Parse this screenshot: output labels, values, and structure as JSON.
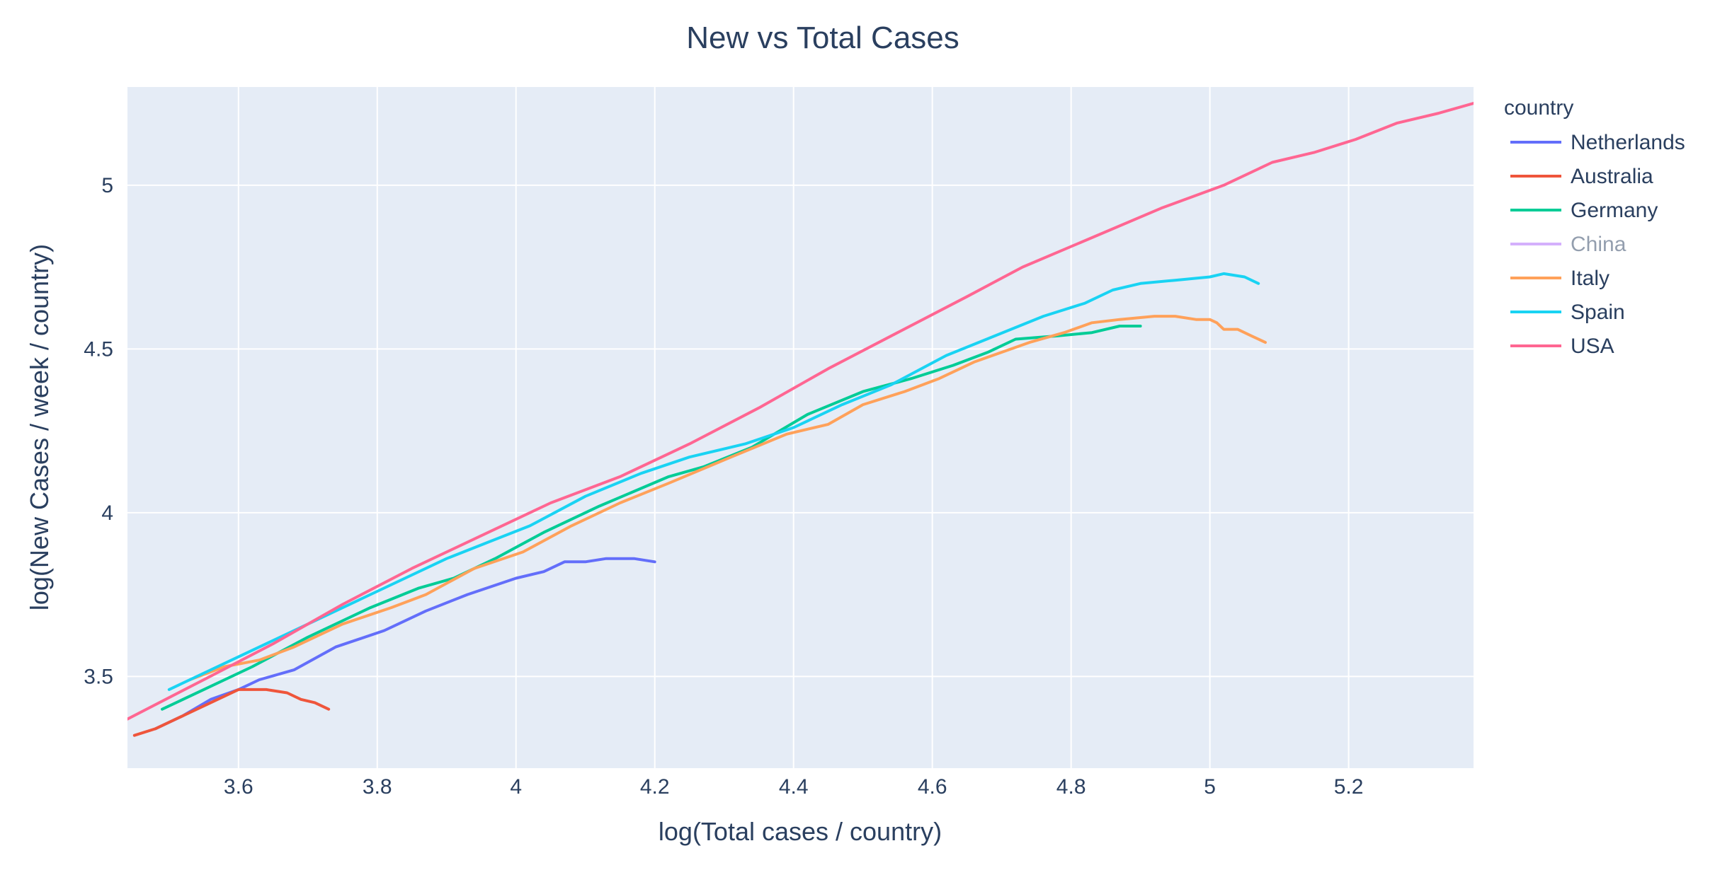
{
  "chart_data": {
    "type": "line",
    "title": "New vs Total Cases",
    "xlabel": "log(Total cases / country)",
    "ylabel": "log(New Cases / week / country)",
    "xlim": [
      3.44,
      5.38
    ],
    "ylim": [
      3.22,
      5.3
    ],
    "x_ticks": [
      3.6,
      3.8,
      4,
      4.2,
      4.4,
      4.6,
      4.8,
      5,
      5.2
    ],
    "x_tick_labels": [
      "3.6",
      "3.8",
      "4",
      "4.2",
      "4.4",
      "4.6",
      "4.8",
      "5",
      "5.2"
    ],
    "y_ticks": [
      3.5,
      4,
      4.5,
      5
    ],
    "y_tick_labels": [
      "3.5",
      "4",
      "4.5",
      "5"
    ],
    "grid": true,
    "legend_title": "country",
    "legend_position": "right",
    "series": [
      {
        "name": "Netherlands",
        "color": "#636efa",
        "hidden": false,
        "x": [
          3.48,
          3.52,
          3.56,
          3.6,
          3.63,
          3.68,
          3.74,
          3.81,
          3.87,
          3.93,
          4.0,
          4.04,
          4.07,
          4.1,
          4.13,
          4.17,
          4.2
        ],
        "y": [
          3.34,
          3.38,
          3.43,
          3.46,
          3.49,
          3.52,
          3.59,
          3.64,
          3.7,
          3.75,
          3.8,
          3.82,
          3.85,
          3.85,
          3.86,
          3.86,
          3.85
        ]
      },
      {
        "name": "Australia",
        "color": "#ef553b",
        "hidden": false,
        "x": [
          3.45,
          3.48,
          3.52,
          3.56,
          3.6,
          3.61,
          3.64,
          3.67,
          3.69,
          3.71,
          3.73
        ],
        "y": [
          3.32,
          3.34,
          3.38,
          3.42,
          3.46,
          3.46,
          3.46,
          3.45,
          3.43,
          3.42,
          3.4
        ]
      },
      {
        "name": "Germany",
        "color": "#00cc96",
        "hidden": false,
        "x": [
          3.49,
          3.55,
          3.62,
          3.7,
          3.79,
          3.86,
          3.91,
          3.97,
          4.04,
          4.12,
          4.22,
          4.27,
          4.34,
          4.42,
          4.5,
          4.57,
          4.63,
          4.68,
          4.72,
          4.78,
          4.83,
          4.87,
          4.9
        ],
        "y": [
          3.4,
          3.46,
          3.53,
          3.62,
          3.71,
          3.77,
          3.8,
          3.86,
          3.94,
          4.02,
          4.11,
          4.14,
          4.2,
          4.3,
          4.37,
          4.41,
          4.45,
          4.49,
          4.53,
          4.54,
          4.55,
          4.57,
          4.57
        ]
      },
      {
        "name": "China",
        "color": "#ab63fa",
        "hidden": true,
        "x": [],
        "y": []
      },
      {
        "name": "Italy",
        "color": "#ffa15a",
        "hidden": false,
        "x": [
          3.53,
          3.58,
          3.63,
          3.68,
          3.75,
          3.82,
          3.87,
          3.94,
          4.01,
          4.08,
          4.15,
          4.22,
          4.31,
          4.39,
          4.45,
          4.5,
          4.56,
          4.61,
          4.66,
          4.7,
          4.74,
          4.79,
          4.83,
          4.87,
          4.92,
          4.95,
          4.98,
          5.0,
          5.01,
          5.02,
          5.04,
          5.06,
          5.08
        ],
        "y": [
          3.49,
          3.53,
          3.55,
          3.59,
          3.66,
          3.71,
          3.75,
          3.83,
          3.88,
          3.96,
          4.03,
          4.09,
          4.17,
          4.24,
          4.27,
          4.33,
          4.37,
          4.41,
          4.46,
          4.49,
          4.52,
          4.55,
          4.58,
          4.59,
          4.6,
          4.6,
          4.59,
          4.59,
          4.58,
          4.56,
          4.56,
          4.54,
          4.52
        ]
      },
      {
        "name": "Spain",
        "color": "#19d3f3",
        "hidden": false,
        "x": [
          3.5,
          3.6,
          3.7,
          3.8,
          3.9,
          3.96,
          4.02,
          4.1,
          4.18,
          4.25,
          4.33,
          4.4,
          4.47,
          4.54,
          4.62,
          4.69,
          4.76,
          4.82,
          4.86,
          4.9,
          4.95,
          5.0,
          5.02,
          5.05,
          5.07
        ],
        "y": [
          3.46,
          3.56,
          3.66,
          3.76,
          3.86,
          3.91,
          3.96,
          4.05,
          4.12,
          4.17,
          4.21,
          4.26,
          4.33,
          4.39,
          4.48,
          4.54,
          4.6,
          4.64,
          4.68,
          4.7,
          4.71,
          4.72,
          4.73,
          4.72,
          4.7
        ]
      },
      {
        "name": "USA",
        "color": "#ff6692",
        "hidden": false,
        "x": [
          3.44,
          3.55,
          3.65,
          3.75,
          3.85,
          3.95,
          4.05,
          4.15,
          4.25,
          4.35,
          4.45,
          4.55,
          4.65,
          4.73,
          4.83,
          4.93,
          5.02,
          5.09,
          5.15,
          5.21,
          5.27,
          5.33,
          5.38
        ],
        "y": [
          3.37,
          3.49,
          3.6,
          3.72,
          3.83,
          3.93,
          4.03,
          4.11,
          4.21,
          4.32,
          4.44,
          4.55,
          4.66,
          4.75,
          4.84,
          4.93,
          5.0,
          5.07,
          5.1,
          5.14,
          5.19,
          5.22,
          5.25
        ]
      }
    ]
  }
}
